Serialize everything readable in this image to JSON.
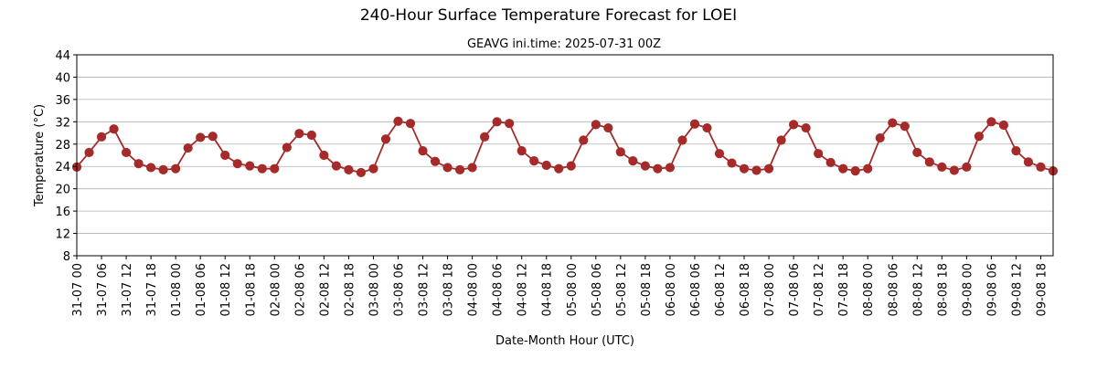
{
  "chart_data": {
    "type": "line",
    "title": "240-Hour Surface Temperature Forecast for LOEI",
    "subtitle": "GEAVG ini.time: 2025-07-31 00Z",
    "xlabel": "Date-Month Hour (UTC)",
    "ylabel": "Temperature (°C)",
    "ylim": [
      8,
      44
    ],
    "yticks": [
      8,
      12,
      16,
      20,
      24,
      28,
      32,
      36,
      40,
      44
    ],
    "grid": "horizontal",
    "line_color": "#a52a2a",
    "x": [
      "31-07 00",
      "31-07 03",
      "31-07 06",
      "31-07 09",
      "31-07 12",
      "31-07 15",
      "31-07 18",
      "31-07 21",
      "01-08 00",
      "01-08 03",
      "01-08 06",
      "01-08 09",
      "01-08 12",
      "01-08 15",
      "01-08 18",
      "01-08 21",
      "02-08 00",
      "02-08 03",
      "02-08 06",
      "02-08 09",
      "02-08 12",
      "02-08 15",
      "02-08 18",
      "02-08 21",
      "03-08 00",
      "03-08 03",
      "03-08 06",
      "03-08 09",
      "03-08 12",
      "03-08 15",
      "03-08 18",
      "03-08 21",
      "04-08 00",
      "04-08 03",
      "04-08 06",
      "04-08 09",
      "04-08 12",
      "04-08 15",
      "04-08 18",
      "04-08 21",
      "05-08 00",
      "05-08 03",
      "05-08 06",
      "05-08 09",
      "05-08 12",
      "05-08 15",
      "05-08 18",
      "05-08 21",
      "06-08 00",
      "06-08 03",
      "06-08 06",
      "06-08 09",
      "06-08 12",
      "06-08 15",
      "06-08 18",
      "06-08 21",
      "07-08 00",
      "07-08 03",
      "07-08 06",
      "07-08 09",
      "07-08 12",
      "07-08 15",
      "07-08 18",
      "07-08 21",
      "08-08 00",
      "08-08 03",
      "08-08 06",
      "08-08 09",
      "08-08 12",
      "08-08 15",
      "08-08 18",
      "08-08 21",
      "09-08 00",
      "09-08 03",
      "09-08 06",
      "09-08 09",
      "09-08 12",
      "09-08 15",
      "09-08 18",
      "09-08 21"
    ],
    "xticks": [
      "31-07 00",
      "31-07 06",
      "31-07 12",
      "31-07 18",
      "01-08 00",
      "01-08 06",
      "01-08 12",
      "01-08 18",
      "02-08 00",
      "02-08 06",
      "02-08 12",
      "02-08 18",
      "03-08 00",
      "03-08 06",
      "03-08 12",
      "03-08 18",
      "04-08 00",
      "04-08 06",
      "04-08 12",
      "04-08 18",
      "05-08 00",
      "05-08 06",
      "05-08 12",
      "05-08 18",
      "06-08 00",
      "06-08 06",
      "06-08 12",
      "06-08 18",
      "07-08 00",
      "07-08 06",
      "07-08 12",
      "07-08 18",
      "08-08 00",
      "08-08 06",
      "08-08 12",
      "08-08 18",
      "09-08 00",
      "09-08 06",
      "09-08 12",
      "09-08 18"
    ],
    "series": [
      {
        "values": [
          23.9,
          26.5,
          29.3,
          30.7,
          26.5,
          24.5,
          23.8,
          23.4,
          23.6,
          27.3,
          29.2,
          29.4,
          26.0,
          24.5,
          24.1,
          23.6,
          23.6,
          27.4,
          29.9,
          29.6,
          26.0,
          24.1,
          23.4,
          22.9,
          23.6,
          28.9,
          32.1,
          31.7,
          26.8,
          24.9,
          23.8,
          23.4,
          23.8,
          29.3,
          32.0,
          31.7,
          26.8,
          25.0,
          24.2,
          23.6,
          24.1,
          28.7,
          31.5,
          30.9,
          26.6,
          25.0,
          24.1,
          23.6,
          23.8,
          28.7,
          31.6,
          30.9,
          26.3,
          24.6,
          23.6,
          23.3,
          23.6,
          28.7,
          31.5,
          30.9,
          26.3,
          24.7,
          23.6,
          23.2,
          23.6,
          29.1,
          31.8,
          31.2,
          26.5,
          24.8,
          23.9,
          23.3,
          23.9,
          29.4,
          32.0,
          31.4,
          26.8,
          24.8,
          23.9,
          23.2
        ]
      }
    ]
  }
}
